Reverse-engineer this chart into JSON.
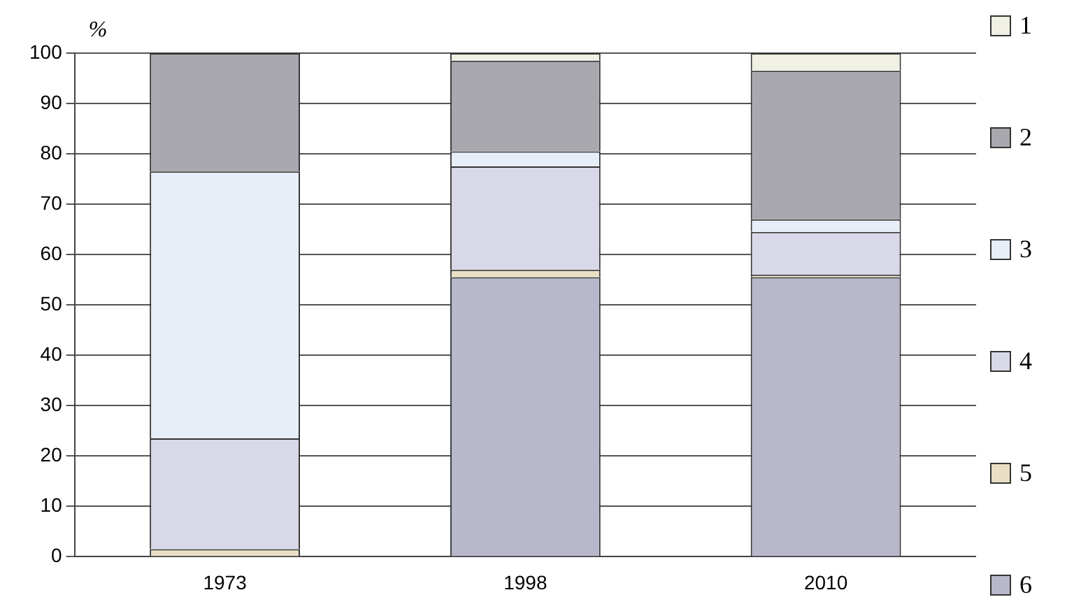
{
  "chart_data": {
    "type": "bar",
    "stacked": true,
    "ylabel": "%",
    "categories": [
      "1973",
      "1998",
      "2010"
    ],
    "series": [
      {
        "name": "6",
        "color": "#b8b8cc",
        "values": [
          0,
          55.5,
          55.5
        ]
      },
      {
        "name": "5",
        "color": "#e8dfc4",
        "values": [
          1.5,
          1.5,
          0.5
        ]
      },
      {
        "name": "4",
        "color": "#d8d8e8",
        "values": [
          22,
          20.5,
          8.5
        ]
      },
      {
        "name": "3",
        "color": "#e8eef8",
        "values": [
          53,
          3,
          2.5
        ]
      },
      {
        "name": "2",
        "color": "#a8a8ae",
        "values": [
          23.5,
          18,
          29.5
        ]
      },
      {
        "name": "1",
        "color": "#f0f0e4",
        "values": [
          0,
          1.5,
          3.5
        ]
      }
    ],
    "ylim": [
      0,
      100
    ],
    "yticks": [
      0,
      10,
      20,
      30,
      40,
      50,
      60,
      70,
      80,
      90,
      100
    ],
    "grid": "y",
    "legend": "right"
  }
}
